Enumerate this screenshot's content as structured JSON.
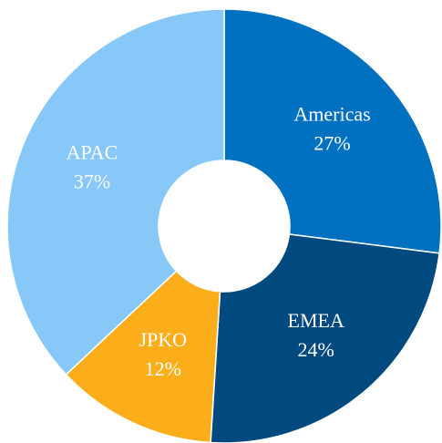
{
  "chart_data": {
    "type": "donut",
    "categories": [
      "Americas",
      "EMEA",
      "JPKO",
      "APAC"
    ],
    "values": [
      27,
      24,
      12,
      37
    ],
    "value_labels": [
      "27%",
      "24%",
      "12%",
      "37%"
    ],
    "colors": [
      "#0070c0",
      "#004a80",
      "#fbad1a",
      "#87c8f8"
    ]
  }
}
